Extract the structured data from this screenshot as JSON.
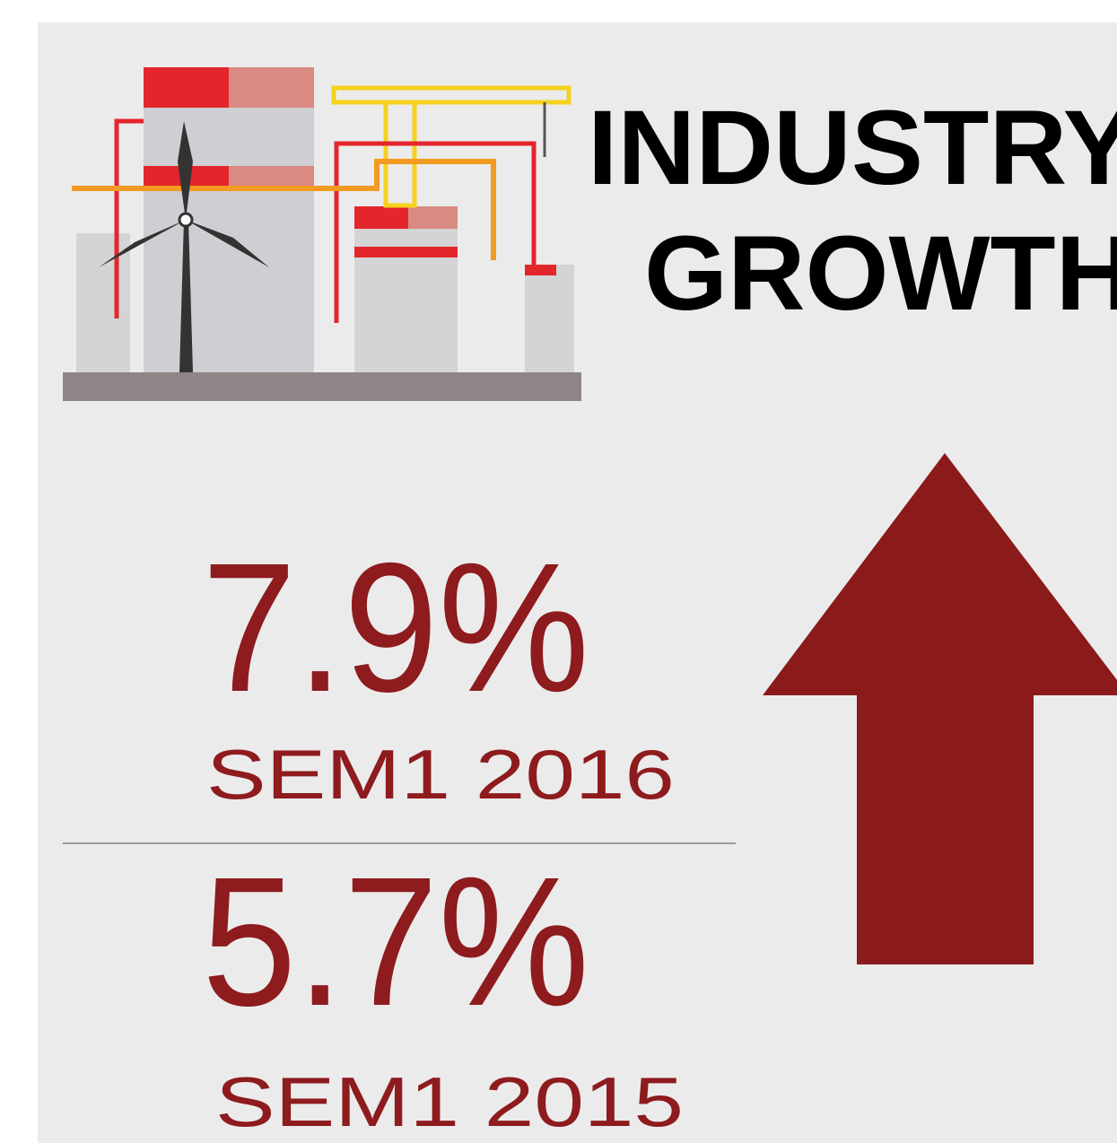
{
  "header": {
    "title_lines": [
      "INDUSTRY",
      "GROWTH"
    ]
  },
  "stats": [
    {
      "value": "7.9%",
      "period": "SEM1 2016"
    },
    {
      "value": "5.7%",
      "period": "SEM1 2015"
    }
  ]
}
